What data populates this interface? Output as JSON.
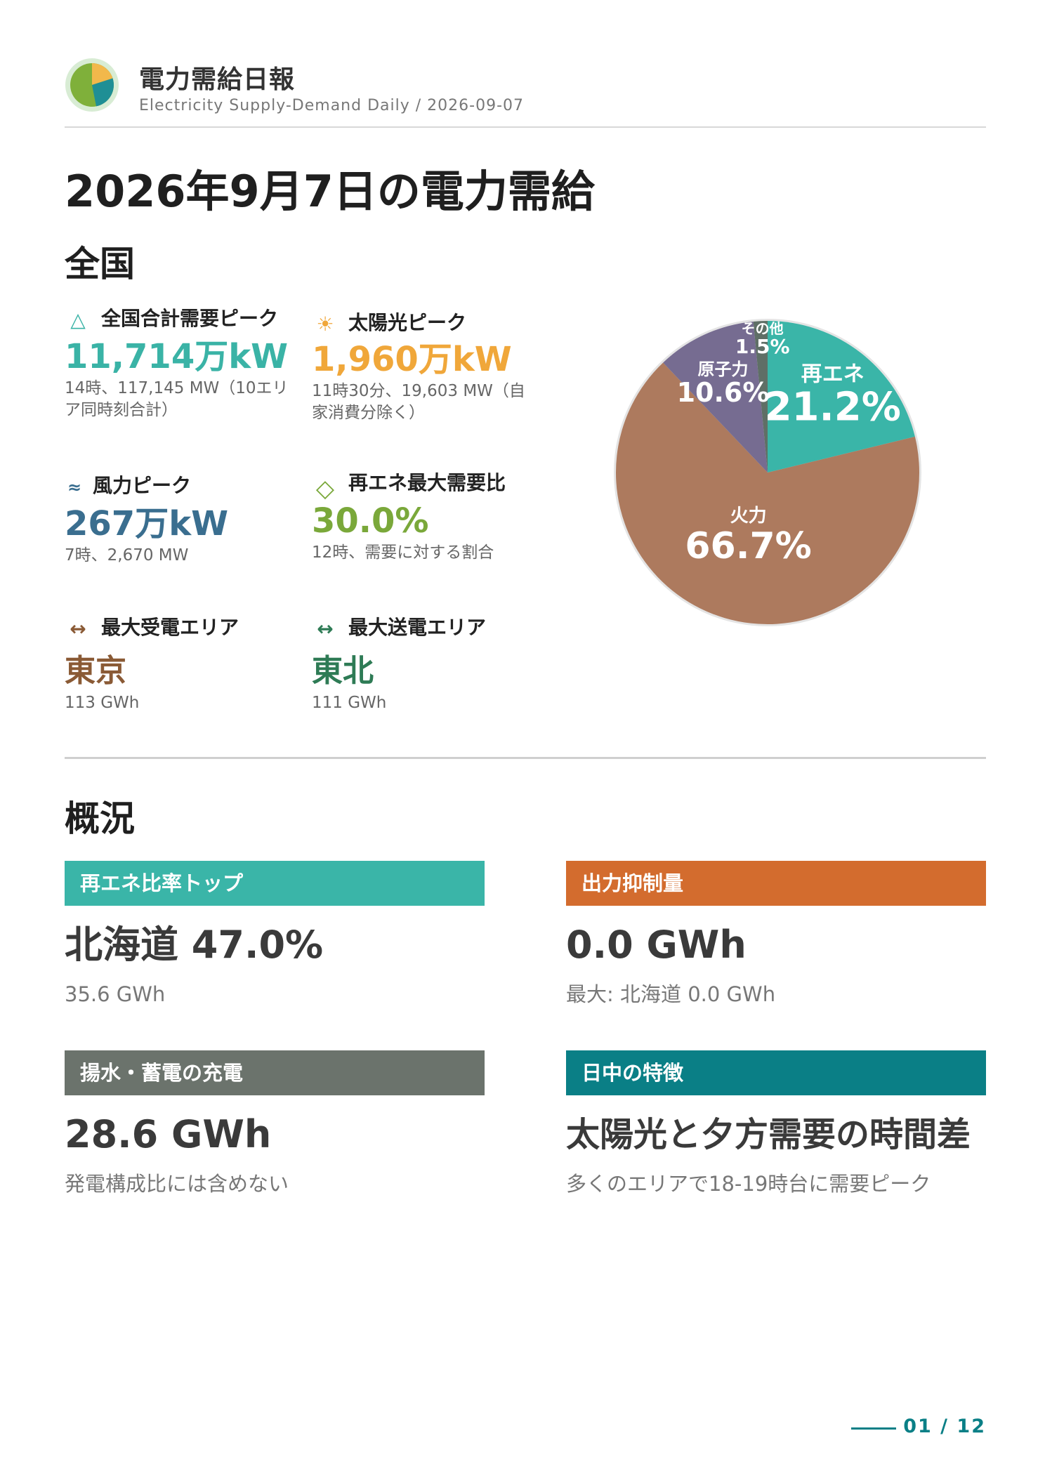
{
  "header": {
    "title": "電力需給日報",
    "subtitle": "Electricity Supply-Demand Daily / 2026-09-07"
  },
  "page_title": "2026年9月7日の電力需給",
  "national": {
    "section_title": "全国",
    "kpis": [
      {
        "icon": "triangle-icon",
        "glyph": "△",
        "label": "全国合計需要ピーク",
        "value": "11,714万kW",
        "note": "14時、117,145 MW（10エリア同時刻合計）",
        "color": "#3ab3a6"
      },
      {
        "icon": "sun-icon",
        "glyph": "☀",
        "label": "太陽光ピーク",
        "value": "1,960万kW",
        "note": "11時30分、19,603 MW（自家消費分除く）",
        "color": "#f0a73a"
      },
      {
        "icon": "wind-icon",
        "glyph": "≈",
        "label": "風力ピーク",
        "value": "267万kW",
        "note": "7時、2,670 MW",
        "color": "#3a6e8f"
      },
      {
        "icon": "diamond-icon",
        "glyph": "◇",
        "label": "再エネ最大需要比",
        "value": "30.0%",
        "note": "12時、需要に対する割合",
        "color": "#7aa83a"
      },
      {
        "icon": "arrow-both-icon",
        "glyph": "↔",
        "label": "最大受電エリア",
        "value": "東京",
        "note": "113 GWh",
        "color": "#8a5a35"
      },
      {
        "icon": "arrow-both-icon",
        "glyph": "↔",
        "label": "最大送電エリア",
        "value": "東北",
        "note": "111 GWh",
        "color": "#2e7b55"
      }
    ]
  },
  "chart_data": {
    "type": "pie",
    "slices": [
      {
        "label": "再エネ",
        "value": 21.2,
        "display": "21.2%",
        "color": "#3ab5a8"
      },
      {
        "label": "火力",
        "value": 66.7,
        "display": "66.7%",
        "color": "#ad7a5e"
      },
      {
        "label": "原子力",
        "value": 10.6,
        "display": "10.6%",
        "color": "#766c91"
      },
      {
        "label": "その他",
        "value": 1.5,
        "display": "1.5%",
        "color": "#5f6f66"
      }
    ]
  },
  "overview": {
    "section_title": "概況",
    "cards": [
      {
        "label": "再エネ比率トップ",
        "value": "北海道 47.0%",
        "note": "35.6 GWh",
        "color": "#3ab5a8"
      },
      {
        "label": "出力抑制量",
        "value": "0.0 GWh",
        "note": "最大: 北海道 0.0 GWh",
        "color": "#d36c2e"
      },
      {
        "label": "揚水・蓄電の充電",
        "value": "28.6 GWh",
        "note": "発電構成比には含めない",
        "color": "#6b736c"
      },
      {
        "label": "日中の特徴",
        "value": "太陽光と夕方需要の時間差",
        "note": "多くのエリアで18-19時台に需要ピーク",
        "color": "#0a7f86"
      }
    ]
  },
  "pager": {
    "text": "01 / 12"
  }
}
